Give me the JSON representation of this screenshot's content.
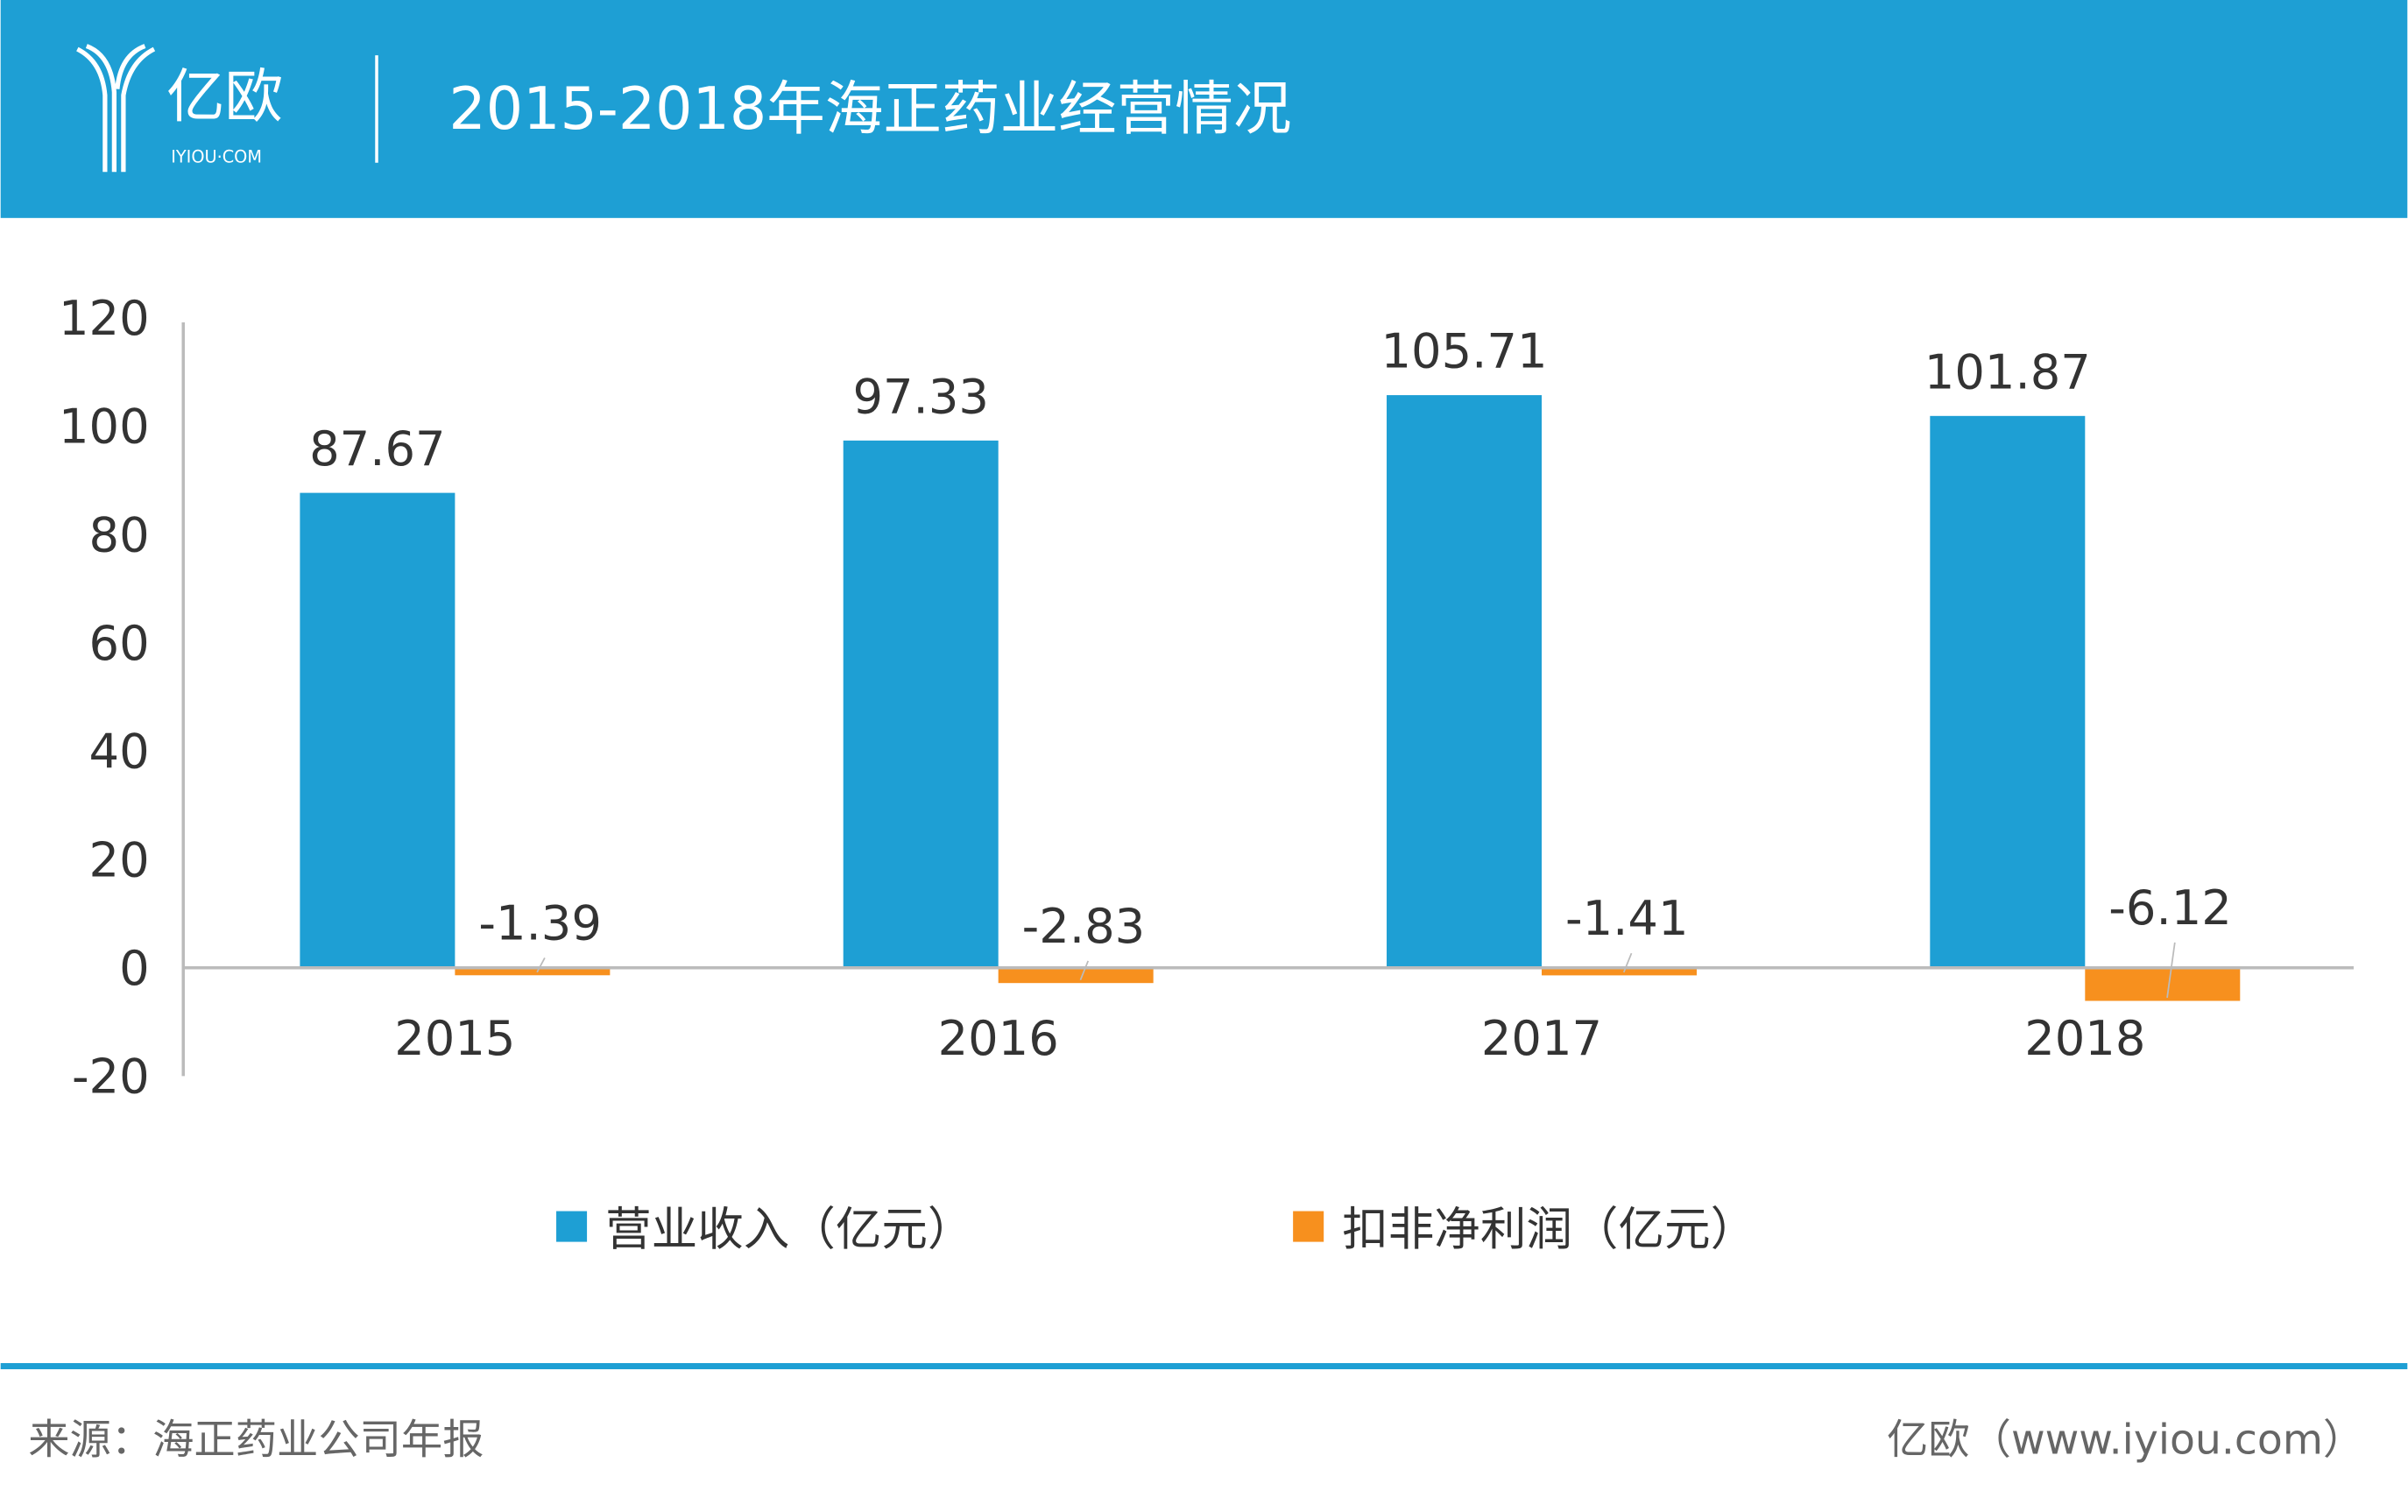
{
  "header": {
    "logo_text": "亿欧",
    "logo_subtext": "IYIOU·COM",
    "title": "2015-2018年海正药业经营情况",
    "background_color": "#1e9fd4"
  },
  "chart_data": {
    "type": "bar",
    "title": "2015-2018年海正药业经营情况",
    "categories": [
      "2015",
      "2016",
      "2017",
      "2018"
    ],
    "series": [
      {
        "name": "营业收入（亿元）",
        "values": [
          87.67,
          97.33,
          105.71,
          101.87
        ],
        "labels": [
          "87.67",
          "97.33",
          "105.71",
          "101.87"
        ],
        "color": "#1e9fd4"
      },
      {
        "name": "扣非净利润（亿元）",
        "values": [
          -1.39,
          -2.83,
          -1.41,
          -6.12
        ],
        "labels": [
          "-1.39",
          "-2.83",
          "-1.41",
          "-6.12"
        ],
        "color": "#f7901e"
      }
    ],
    "ylim": [
      -20,
      120
    ],
    "yticks": [
      "-20",
      "0",
      "20",
      "40",
      "60",
      "80",
      "100",
      "120"
    ],
    "xlabel": "",
    "ylabel": "",
    "grid": false,
    "legend": "bottom"
  },
  "footer": {
    "source": "来源：海正药业公司年报",
    "credit": "亿欧（www.iyiou.com）",
    "line_color": "#1e9fd4"
  }
}
